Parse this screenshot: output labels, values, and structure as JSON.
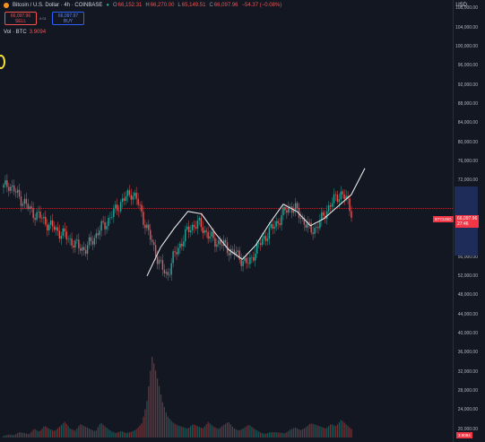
{
  "header": {
    "symbol_title": "Bitcoin / U.S. Dollar · 4h · COINBASE",
    "ohlc": [
      {
        "k": "O",
        "v": "66,152.31"
      },
      {
        "k": "H",
        "v": "66,270.00"
      },
      {
        "k": "L",
        "v": "65,149.51"
      },
      {
        "k": "C",
        "v": "66,097.96"
      },
      {
        "k": "",
        "v": "−54.37 (−0.08%)"
      }
    ],
    "currency": "USD"
  },
  "trade": {
    "sell_price": "66,097.96",
    "sell_label": "SELL",
    "buy_price": "66,097.97",
    "buy_label": "BUY",
    "spread": "0.01"
  },
  "volume_indicator": {
    "label": "Vol · BTC",
    "value": "3.9094"
  },
  "price_axis": {
    "ticks": [
      "108,000.00",
      "104,000.00",
      "100,000.00",
      "96,000.00",
      "92,000.00",
      "88,000.00",
      "84,000.00",
      "80,000.00",
      "76,000.00",
      "72,000.00",
      "68,000.00",
      "64,000.00",
      "60,000.00",
      "56,000.00",
      "52,000.00",
      "48,000.00",
      "44,000.00",
      "40,000.00",
      "36,000.00",
      "32,000.00",
      "28,000.00",
      "24,000.00",
      "20,000.00"
    ]
  },
  "current_price": {
    "symbol": "BTCUSD",
    "price": "66,097.96",
    "countdown": "27:46"
  },
  "volume_tag": "3.9094",
  "colors": {
    "up": "#26a69a",
    "down": "#ef5350",
    "background": "#131722",
    "accent": "#2962ff"
  },
  "chart_data": {
    "type": "candlestick",
    "series": [
      {
        "name": "BTCUSD price path",
        "values": [
          70500,
          71200,
          70000,
          68500,
          67500,
          66000,
          65000,
          64500,
          63500,
          62500,
          62000,
          61000,
          60500,
          59500,
          58500,
          58000,
          57500,
          59000,
          60500,
          62000,
          63000,
          64500,
          66000,
          67500,
          68500,
          69500,
          68000,
          65000,
          62000,
          59000,
          56000,
          53500,
          52000,
          55500,
          57500,
          59500,
          61500,
          62500,
          63000,
          62000,
          60500,
          59500,
          59000,
          58500,
          57500,
          57000,
          56000,
          55000,
          54500,
          57000,
          58500,
          60000,
          61500,
          62500,
          64000,
          65500,
          66500,
          66000,
          64500,
          63000,
          61500,
          62000,
          63500,
          65500,
          67000,
          68500,
          69200,
          68000,
          65500
        ]
      },
      {
        "name": "Volume (BTC)",
        "values": [
          2,
          3,
          2,
          4,
          3,
          2,
          5,
          3,
          6,
          4,
          3,
          5,
          7,
          4,
          3,
          6,
          5,
          4,
          3,
          8,
          6,
          4,
          3,
          5,
          4,
          6,
          10,
          14,
          30,
          60,
          40,
          22,
          12,
          8,
          6,
          5,
          4,
          6,
          5,
          4,
          7,
          5,
          4,
          6,
          8,
          5,
          4,
          6,
          9,
          7,
          5,
          4,
          6,
          5,
          4,
          3,
          5,
          6,
          4,
          5,
          7,
          6,
          5,
          4,
          6,
          5,
          8,
          6,
          4
        ]
      }
    ],
    "drawing_curve_prices": [
      52000,
      58000,
      62000,
      65500,
      65000,
      61000,
      57500,
      55500,
      58500,
      63000,
      67000,
      65500,
      62500,
      64000,
      66500,
      69000,
      74500
    ],
    "ylim": [
      20000,
      110000
    ],
    "scale": "linear",
    "grid": false
  }
}
